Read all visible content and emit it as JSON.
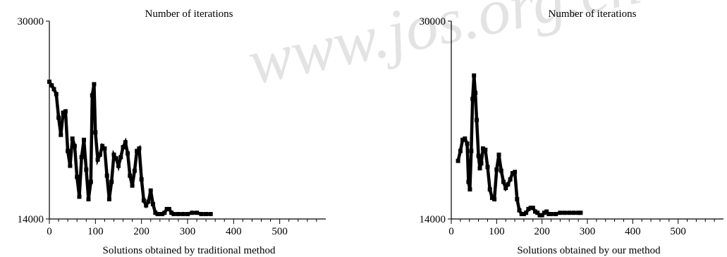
{
  "watermark": {
    "text": "www.jos.org.cn",
    "color": "#d9d9d9"
  },
  "chart_data": [
    {
      "type": "line",
      "title": "Number of iterations",
      "xlabel": "Solutions obtained by traditional method",
      "ylabel": "",
      "xlim": [
        0,
        600
      ],
      "ylim": [
        14000,
        30000
      ],
      "x_ticks": [
        "0",
        "100",
        "200",
        "300",
        "400",
        "500"
      ],
      "y_ticks": [
        "30000",
        "14000"
      ],
      "grid": false,
      "series": [
        {
          "color": "#000000",
          "points": [
            [
              0,
              25100
            ],
            [
              5,
              24800
            ],
            [
              10,
              24500
            ],
            [
              15,
              24100
            ],
            [
              20,
              22200
            ],
            [
              25,
              20800
            ],
            [
              30,
              22600
            ],
            [
              35,
              22700
            ],
            [
              40,
              19500
            ],
            [
              45,
              18300
            ],
            [
              50,
              20500
            ],
            [
              55,
              19900
            ],
            [
              60,
              17400
            ],
            [
              65,
              15800
            ],
            [
              70,
              19000
            ],
            [
              75,
              20400
            ],
            [
              80,
              18000
            ],
            [
              85,
              15600
            ],
            [
              90,
              17000
            ],
            [
              93,
              24000
            ],
            [
              97,
              24900
            ],
            [
              100,
              21000
            ],
            [
              105,
              18800
            ],
            [
              110,
              19200
            ],
            [
              115,
              19900
            ],
            [
              120,
              19700
            ],
            [
              125,
              17500
            ],
            [
              130,
              15600
            ],
            [
              135,
              17000
            ],
            [
              140,
              19200
            ],
            [
              145,
              18900
            ],
            [
              150,
              18300
            ],
            [
              155,
              19000
            ],
            [
              160,
              19800
            ],
            [
              165,
              20200
            ],
            [
              170,
              19300
            ],
            [
              175,
              17500
            ],
            [
              180,
              16700
            ],
            [
              185,
              17900
            ],
            [
              190,
              19500
            ],
            [
              195,
              19700
            ],
            [
              200,
              17200
            ],
            [
              205,
              15500
            ],
            [
              210,
              15100
            ],
            [
              215,
              15400
            ],
            [
              220,
              16300
            ],
            [
              225,
              15200
            ],
            [
              230,
              14500
            ],
            [
              235,
              14400
            ],
            [
              240,
              14400
            ],
            [
              245,
              14400
            ],
            [
              250,
              14500
            ],
            [
              255,
              14800
            ],
            [
              260,
              14800
            ],
            [
              265,
              14500
            ],
            [
              270,
              14400
            ],
            [
              280,
              14400
            ],
            [
              290,
              14400
            ],
            [
              300,
              14400
            ],
            [
              310,
              14500
            ],
            [
              320,
              14500
            ],
            [
              330,
              14400
            ],
            [
              340,
              14400
            ],
            [
              350,
              14400
            ]
          ]
        }
      ]
    },
    {
      "type": "line",
      "title": "Number of iterations",
      "xlabel": "Solutions obtained by our method",
      "ylabel": "",
      "xlim": [
        0,
        600
      ],
      "ylim": [
        14000,
        30000
      ],
      "x_ticks": [
        "0",
        "100",
        "200",
        "300",
        "400",
        "500"
      ],
      "y_ticks": [
        "30000",
        "14000"
      ],
      "grid": false,
      "series": [
        {
          "color": "#000000",
          "points": [
            [
              15,
              18700
            ],
            [
              20,
              19500
            ],
            [
              25,
              20400
            ],
            [
              30,
              20500
            ],
            [
              35,
              20100
            ],
            [
              38,
              17000
            ],
            [
              41,
              16400
            ],
            [
              44,
              19500
            ],
            [
              47,
              23700
            ],
            [
              50,
              25600
            ],
            [
              53,
              24200
            ],
            [
              56,
              22000
            ],
            [
              60,
              19100
            ],
            [
              63,
              18100
            ],
            [
              66,
              18500
            ],
            [
              70,
              19700
            ],
            [
              75,
              19600
            ],
            [
              80,
              18200
            ],
            [
              85,
              16400
            ],
            [
              90,
              15700
            ],
            [
              95,
              15600
            ],
            [
              100,
              18000
            ],
            [
              105,
              19200
            ],
            [
              110,
              17900
            ],
            [
              115,
              17000
            ],
            [
              120,
              16500
            ],
            [
              125,
              16800
            ],
            [
              130,
              17200
            ],
            [
              135,
              17700
            ],
            [
              140,
              17800
            ],
            [
              145,
              15600
            ],
            [
              150,
              14700
            ],
            [
              155,
              14400
            ],
            [
              160,
              14400
            ],
            [
              165,
              14500
            ],
            [
              170,
              14800
            ],
            [
              175,
              14900
            ],
            [
              180,
              14900
            ],
            [
              185,
              14600
            ],
            [
              190,
              14500
            ],
            [
              195,
              14300
            ],
            [
              200,
              14300
            ],
            [
              205,
              14500
            ],
            [
              210,
              14600
            ],
            [
              215,
              14400
            ],
            [
              220,
              14400
            ],
            [
              230,
              14400
            ],
            [
              240,
              14500
            ],
            [
              250,
              14500
            ],
            [
              260,
              14500
            ],
            [
              270,
              14500
            ],
            [
              280,
              14500
            ],
            [
              285,
              14500
            ]
          ]
        }
      ]
    }
  ]
}
